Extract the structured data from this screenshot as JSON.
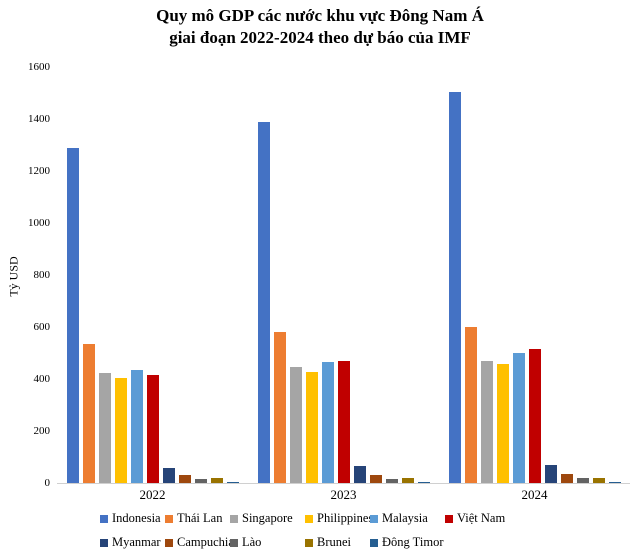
{
  "title": {
    "line1": "Quy mô GDP các nước khu vực Đông Nam Á",
    "line2": "giai đoạn 2022-2024 theo dự báo của IMF"
  },
  "chart_data": {
    "type": "bar",
    "title": "Quy mô GDP các nước khu vực Đông Nam Á giai đoạn 2022-2024 theo dự báo của IMF",
    "xlabel": "",
    "ylabel": "Tỷ USD",
    "ylim": [
      0,
      1600
    ],
    "yticks": [
      0,
      200,
      400,
      600,
      800,
      1000,
      1200,
      1400,
      1600
    ],
    "grid": false,
    "legend_position": "bottom",
    "axis_line_color": "#d0d0d0",
    "categories": [
      "2022",
      "2023",
      "2024"
    ],
    "series": [
      {
        "name": "Indonesia",
        "color": "#4472C4",
        "values": [
          1290,
          1390,
          1505
        ]
      },
      {
        "name": "Thái Lan",
        "color": "#ED7D31",
        "values": [
          534,
          580,
          600
        ]
      },
      {
        "name": "Singapore",
        "color": "#A5A5A5",
        "values": [
          425,
          447,
          470
        ]
      },
      {
        "name": "Philippines",
        "color": "#FFC000",
        "values": [
          404,
          426,
          457
        ]
      },
      {
        "name": "Malaysia",
        "color": "#5B9BD5",
        "values": [
          434,
          467,
          500
        ]
      },
      {
        "name": "Việt Nam",
        "color": "#C00000",
        "values": [
          414,
          469,
          517
        ]
      },
      {
        "name": "Myanmar",
        "color": "#264478",
        "values": [
          59,
          65,
          70
        ]
      },
      {
        "name": "Campuchia",
        "color": "#9E480E",
        "values": [
          30,
          32,
          35
        ]
      },
      {
        "name": "Lào",
        "color": "#636363",
        "values": [
          17,
          17,
          18
        ]
      },
      {
        "name": "Brunei",
        "color": "#997300",
        "values": [
          18,
          19,
          20
        ]
      },
      {
        "name": "Đông Timor",
        "color": "#255E91",
        "values": [
          3,
          4,
          4
        ]
      }
    ],
    "legend_rows": [
      6,
      5
    ]
  }
}
